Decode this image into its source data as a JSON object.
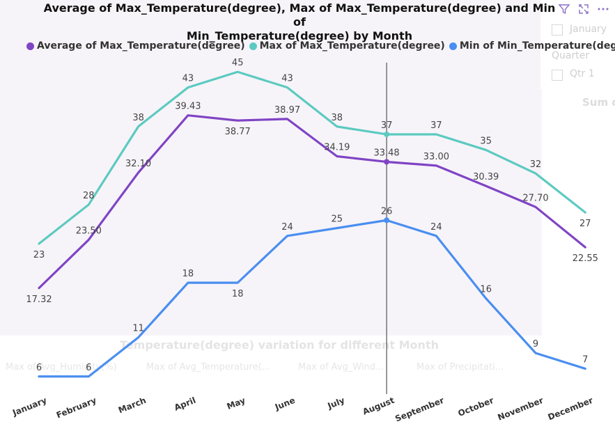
{
  "chart_data": {
    "type": "line",
    "title": "Average of Max_Temperature(degree), Max of Max_Temperature(degree) and Min of Min_Temperature(degree) by Month",
    "title_lines": [
      "Average of Max_Temperature(degree), Max of Max_Temperature(degree) and Min of",
      "Min_Temperature(degree) by Month"
    ],
    "xlabel": "",
    "ylabel": "",
    "ylim": [
      5,
      46
    ],
    "grid": false,
    "legend_position": "top",
    "categories": [
      "January",
      "February",
      "March",
      "April",
      "May",
      "June",
      "July",
      "August",
      "September",
      "October",
      "November",
      "December"
    ],
    "series": [
      {
        "name": "Average of Max_Temperature(degree)",
        "color": "#8044c4",
        "values": [
          17.32,
          23.5,
          32.1,
          39.43,
          38.77,
          38.97,
          34.19,
          33.48,
          33.0,
          30.39,
          27.7,
          22.55
        ],
        "labels": [
          "17.32",
          "23.50",
          "32.10",
          "39.43",
          "38.77",
          "38.97",
          "34.19",
          "33.48",
          "33.00",
          "30.39",
          "27.70",
          "22.55"
        ]
      },
      {
        "name": "Max of Max_Temperature(degree)",
        "color": "#5ccac0",
        "values": [
          23,
          28,
          38,
          43,
          45,
          43,
          38,
          37,
          37,
          35,
          32,
          27
        ],
        "labels": [
          "23",
          "28",
          "38",
          "43",
          "45",
          "43",
          "38",
          "37",
          "37",
          "35",
          "32",
          "27"
        ]
      },
      {
        "name": "Min of Min_Temperature(degree)",
        "color": "#4a8ef0",
        "values": [
          6,
          6,
          11,
          18,
          18,
          24,
          25,
          26,
          24,
          16,
          9,
          7
        ],
        "labels": [
          "6",
          "6",
          "11",
          "18",
          "18",
          "24",
          "25",
          "26",
          "24",
          "16",
          "9",
          "7"
        ]
      }
    ],
    "highlight_category": "August"
  },
  "legend": {
    "items": [
      {
        "label": "Average of Max_Temperature(degree)",
        "color": "#8044c4"
      },
      {
        "label": "Max of Max_Temperature(degree)",
        "color": "#5ccac0"
      },
      {
        "label": "Min of Min_Temperature(degree)",
        "color": "#4a8ef0"
      }
    ]
  },
  "toolbar": {
    "filter_icon": "filter-icon",
    "focus_icon": "focus-mode-icon",
    "more_icon": "more-options-icon"
  },
  "background": {
    "slicer_month": "January",
    "slicer_quarter_title": "Quarter",
    "slicer_quarter": "Qtr 1",
    "side_visual_title": "Sum o",
    "chart2_title": "Temperature(degree) variation for different Month",
    "chart2_legend": [
      "Max of Avg_Humidity(%)",
      "Max of Avg_Temperature(...",
      "Max of Avg_Wind...",
      "Max of Precipitati..."
    ]
  }
}
